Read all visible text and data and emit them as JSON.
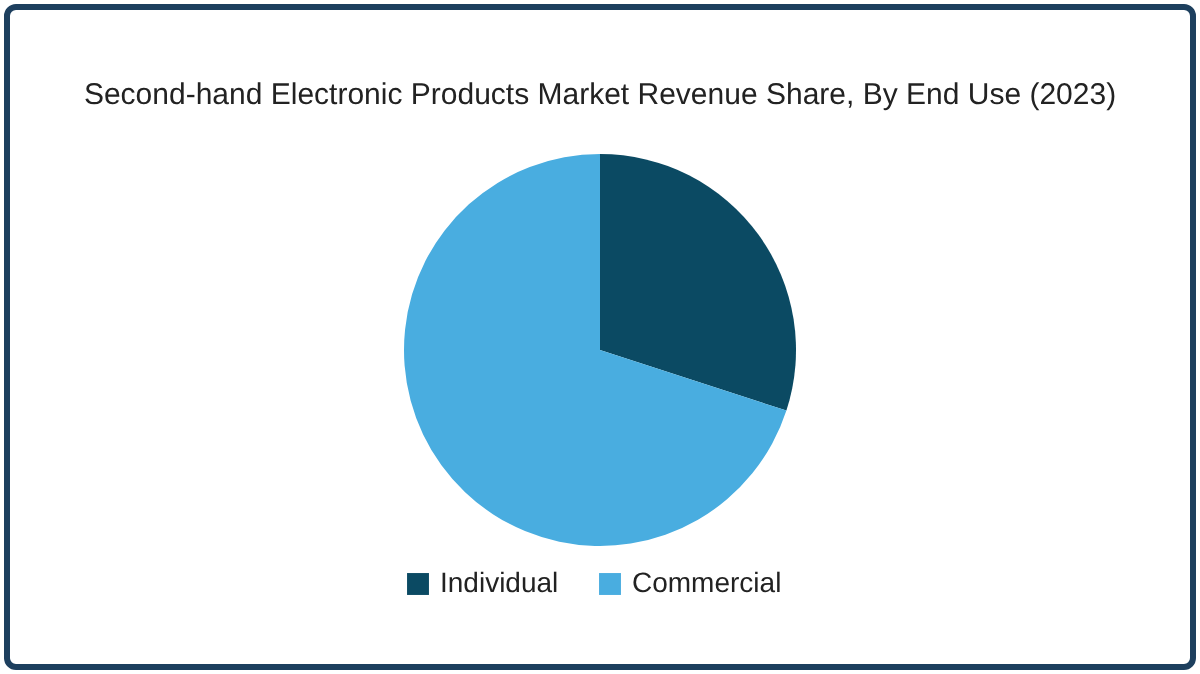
{
  "chart_data": {
    "type": "pie",
    "title": "Second-hand Electronic Products Market Revenue Share, By End Use (2023)",
    "categories": [
      "Individual",
      "Commercial"
    ],
    "values": [
      30,
      70
    ],
    "colors": [
      "#0b4a63",
      "#49ade0"
    ],
    "legend": "bottom"
  }
}
